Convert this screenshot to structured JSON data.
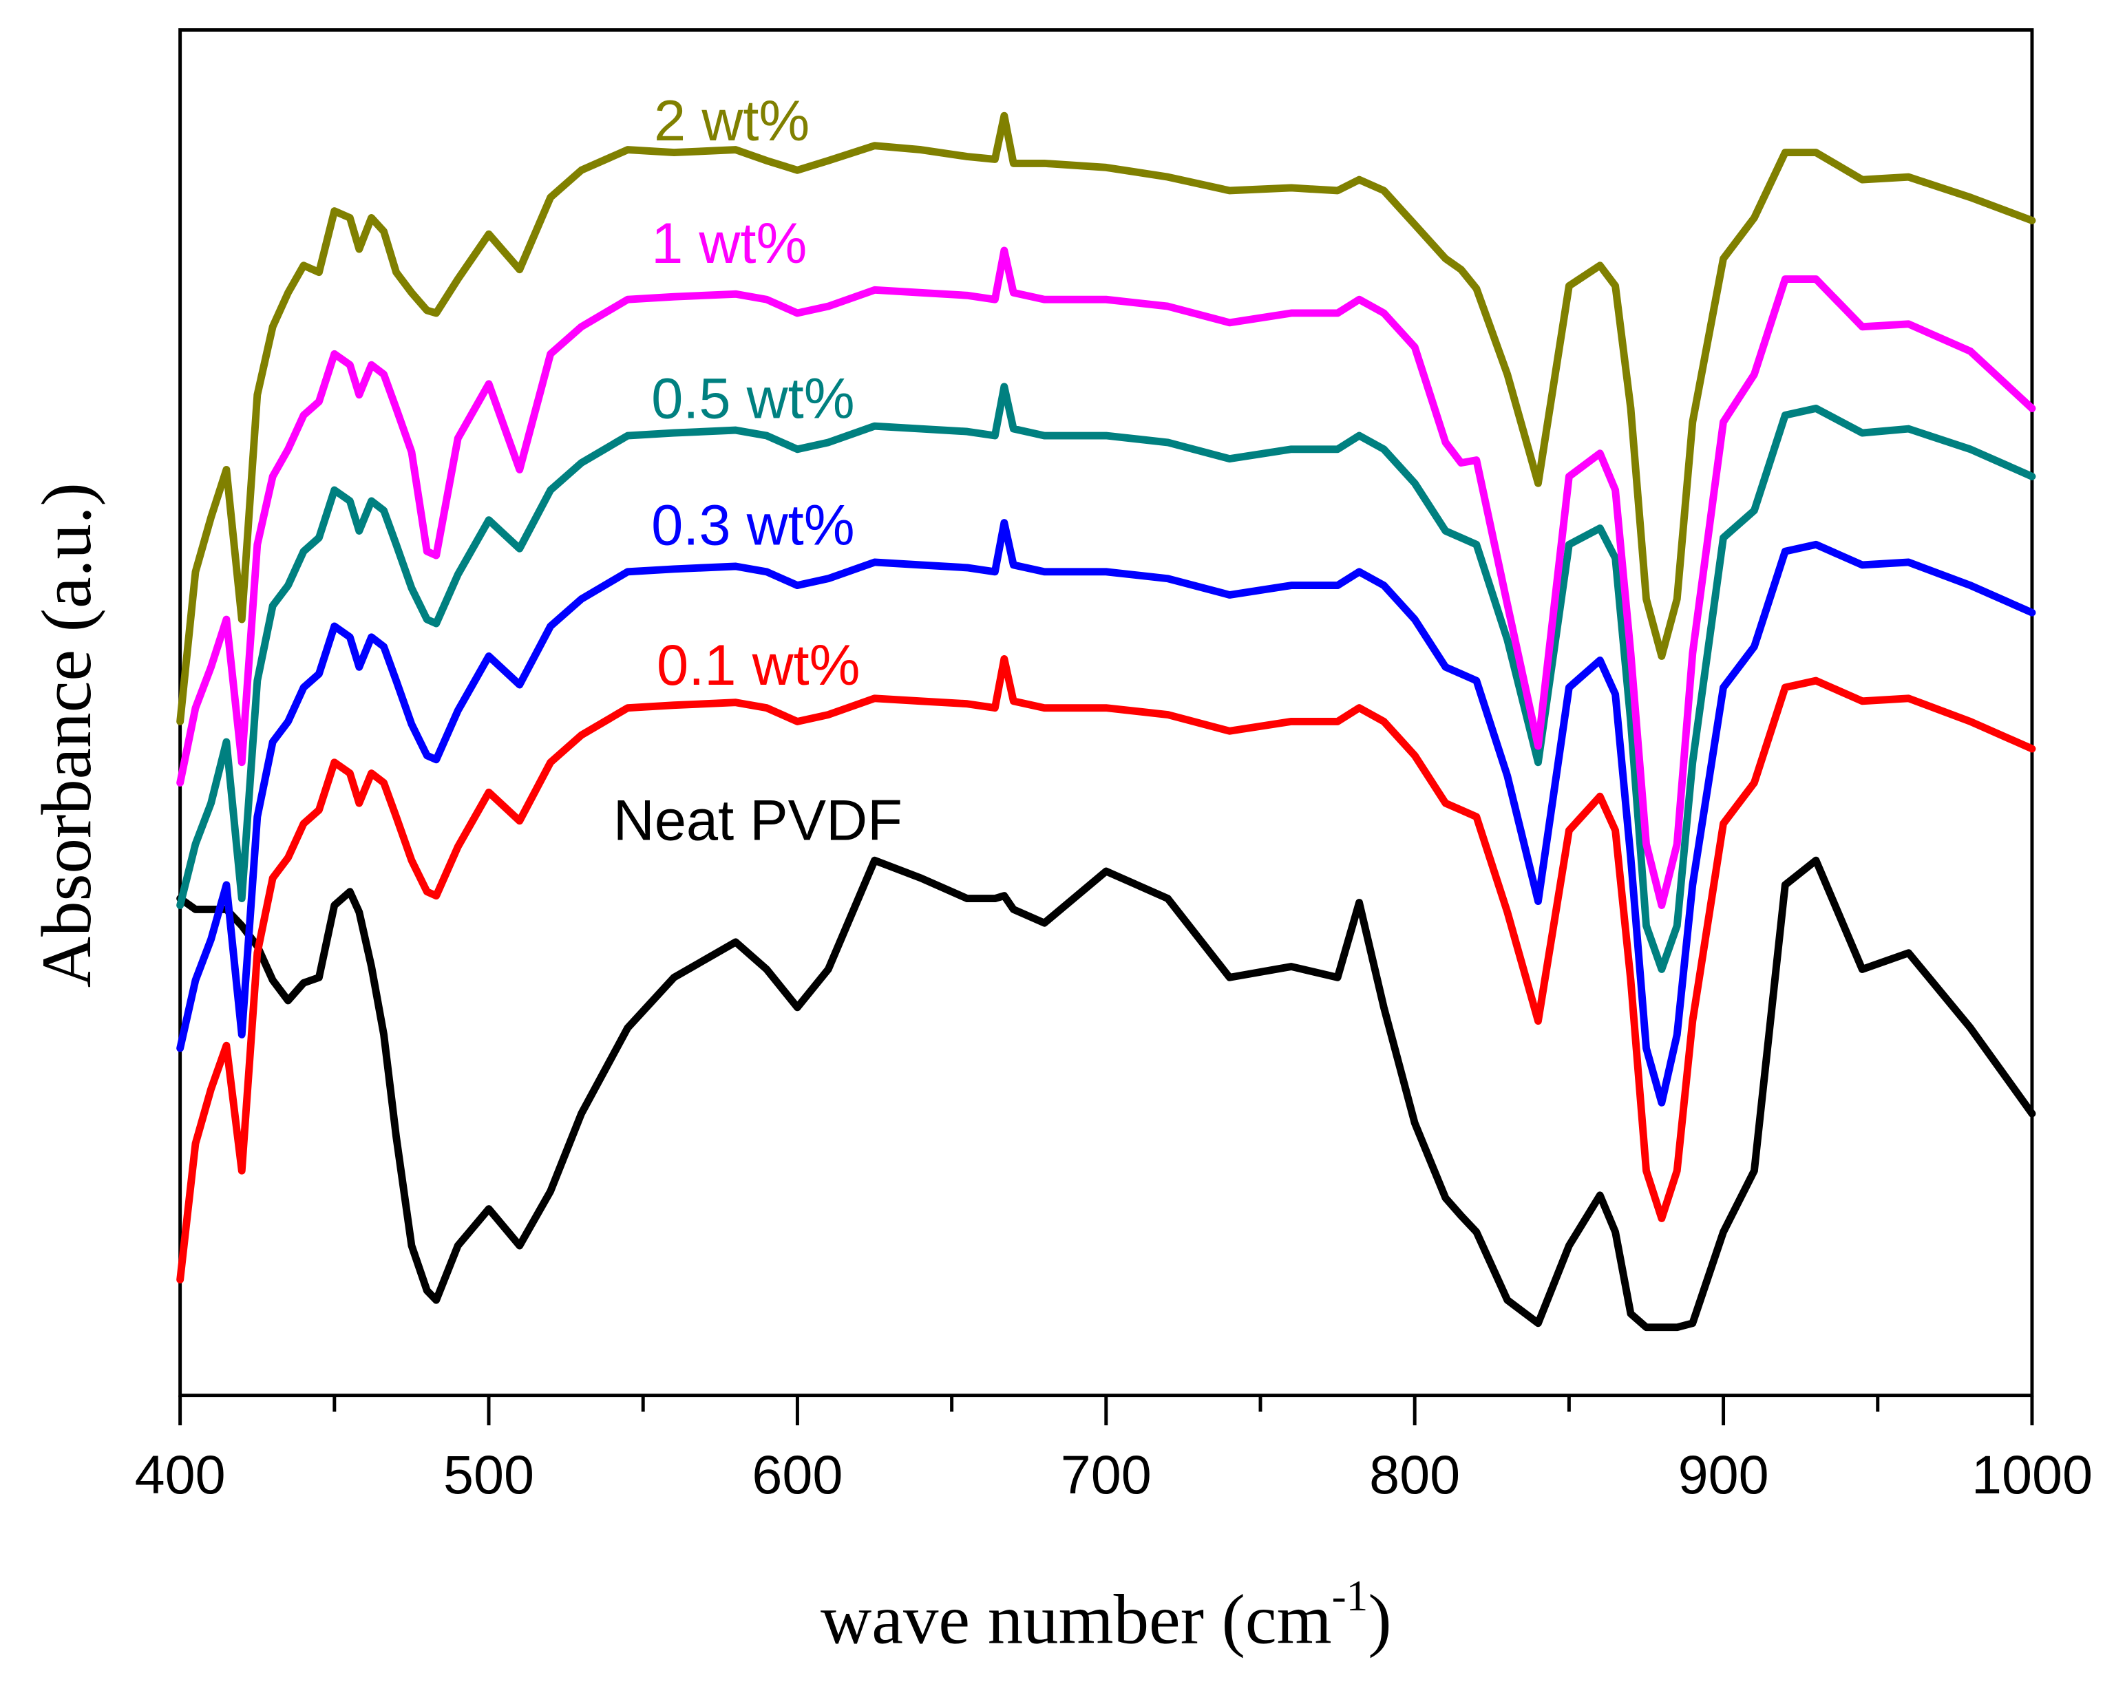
{
  "chart_data": {
    "type": "line",
    "xlabel": "wave number (cm",
    "xlabel_sup": "-1",
    "xlabel_close": ")",
    "ylabel": "Absorbance (a.u.)",
    "xlim": [
      400,
      1000
    ],
    "ylim": [
      0,
      100.3
    ],
    "xticks": [
      400,
      500,
      600,
      700,
      800,
      900,
      1000
    ],
    "xticks_minor": [
      450,
      550,
      650,
      750,
      850,
      950
    ],
    "grid": false,
    "x": [
      400,
      405,
      410,
      415,
      420,
      425,
      430,
      435,
      440,
      445,
      450,
      455,
      458,
      462,
      466,
      470,
      475,
      480,
      483,
      490,
      500,
      510,
      520,
      530,
      545,
      560,
      580,
      590,
      600,
      610,
      625,
      640,
      655,
      664,
      667,
      670,
      680,
      700,
      720,
      740,
      760,
      775,
      782,
      790,
      800,
      810,
      815,
      820,
      830,
      840,
      850,
      860,
      865,
      870,
      875,
      880,
      885,
      890,
      900,
      910,
      920,
      930,
      945,
      960,
      980,
      1000
    ],
    "series": [
      {
        "name": "Neat PVDF",
        "color": "#000000",
        "values": [
          36.5,
          35.7,
          35.7,
          35.7,
          34.5,
          33.0,
          30.5,
          29.0,
          30.3,
          30.7,
          36.0,
          37.0,
          35.5,
          31.5,
          26.5,
          19.0,
          11.0,
          7.7,
          7.0,
          11.0,
          13.7,
          11.0,
          15.0,
          20.7,
          27.0,
          30.7,
          33.3,
          31.3,
          28.5,
          31.3,
          39.3,
          38.0,
          36.5,
          36.5,
          36.7,
          35.7,
          34.7,
          38.5,
          36.5,
          30.7,
          31.5,
          30.7,
          36.2,
          28.5,
          20.0,
          14.5,
          13.2,
          12.0,
          7.0,
          5.3,
          11.0,
          14.7,
          12.0,
          6.0,
          5.0,
          5.0,
          5.0,
          5.3,
          12.0,
          16.5,
          37.5,
          39.3,
          31.3,
          32.5,
          27.0,
          20.7
        ]
      },
      {
        "name": "0.1 wt%",
        "color": "#ff0000",
        "values": [
          8.5,
          18.5,
          22.5,
          25.7,
          16.5,
          32.5,
          38.0,
          39.5,
          42.0,
          43.0,
          46.5,
          45.7,
          43.5,
          45.7,
          45.0,
          42.5,
          39.3,
          37.0,
          36.7,
          40.3,
          44.3,
          42.2,
          46.5,
          48.5,
          50.5,
          50.7,
          50.9,
          50.5,
          49.5,
          50.0,
          51.2,
          51.0,
          50.8,
          50.5,
          54.1,
          51.0,
          50.5,
          50.5,
          50.0,
          48.8,
          49.5,
          49.5,
          50.5,
          49.5,
          47.0,
          43.5,
          43.0,
          42.5,
          35.5,
          27.5,
          41.5,
          44.0,
          41.5,
          30.5,
          16.5,
          13.0,
          16.5,
          27.5,
          42.0,
          45.0,
          52.0,
          52.5,
          51.0,
          51.2,
          49.5,
          47.5
        ]
      },
      {
        "name": "0.3 wt%",
        "color": "#0000ff",
        "values": [
          25.5,
          30.5,
          33.5,
          37.5,
          26.5,
          42.5,
          48.0,
          49.5,
          52.0,
          53.0,
          56.5,
          55.7,
          53.5,
          55.7,
          55.0,
          52.5,
          49.3,
          47.0,
          46.7,
          50.3,
          54.3,
          52.2,
          56.5,
          58.5,
          60.5,
          60.7,
          60.9,
          60.5,
          59.5,
          60.0,
          61.2,
          61.0,
          60.8,
          60.5,
          64.1,
          61.0,
          60.5,
          60.5,
          60.0,
          58.8,
          59.5,
          59.5,
          60.5,
          59.5,
          57.0,
          53.5,
          53.0,
          52.5,
          45.5,
          36.3,
          52.0,
          54.0,
          51.5,
          39.5,
          25.5,
          21.5,
          26.5,
          37.5,
          52.0,
          55.0,
          62.0,
          62.5,
          61.0,
          61.2,
          59.5,
          57.5
        ]
      },
      {
        "name": "0.5 wt%",
        "color": "#008080",
        "values": [
          36.0,
          40.5,
          43.5,
          48.0,
          36.5,
          52.5,
          58.0,
          59.5,
          62.0,
          63.0,
          66.5,
          65.7,
          63.5,
          65.7,
          65.0,
          62.5,
          59.3,
          57.0,
          56.7,
          60.3,
          64.3,
          62.2,
          66.5,
          68.5,
          70.5,
          70.7,
          70.9,
          70.5,
          69.5,
          70.0,
          71.2,
          71.0,
          70.8,
          70.5,
          74.1,
          71.0,
          70.5,
          70.5,
          70.0,
          68.8,
          69.5,
          69.5,
          70.5,
          69.5,
          67.0,
          63.5,
          63.0,
          62.5,
          55.5,
          46.5,
          62.5,
          63.7,
          61.5,
          49.5,
          34.5,
          31.3,
          34.5,
          46.5,
          63.0,
          65.0,
          72.0,
          72.5,
          70.7,
          71.0,
          69.5,
          67.5
        ]
      },
      {
        "name": "1 wt%",
        "color": "#ff00ff",
        "values": [
          45.0,
          50.5,
          53.5,
          57.0,
          46.5,
          62.5,
          67.5,
          69.5,
          72.0,
          73.0,
          76.5,
          75.7,
          73.5,
          75.7,
          75.0,
          72.5,
          69.3,
          62.0,
          61.7,
          70.3,
          74.3,
          68.0,
          76.5,
          78.5,
          80.5,
          80.7,
          80.9,
          80.5,
          79.5,
          80.0,
          81.2,
          81.0,
          80.8,
          80.5,
          84.1,
          81.0,
          80.5,
          80.5,
          80.0,
          78.8,
          79.5,
          79.5,
          80.5,
          79.5,
          77.0,
          70.0,
          68.5,
          68.7,
          58.1,
          47.7,
          67.5,
          69.2,
          66.5,
          54.5,
          40.5,
          36.0,
          40.5,
          54.5,
          71.5,
          75.0,
          82.0,
          82.0,
          78.5,
          78.7,
          76.7,
          72.5
        ]
      },
      {
        "name": "2 wt%",
        "color": "#808000",
        "values": [
          49.5,
          60.5,
          64.5,
          68.0,
          57.0,
          73.5,
          78.5,
          81.0,
          83.0,
          82.5,
          87.0,
          86.5,
          84.2,
          86.5,
          85.5,
          82.5,
          81.0,
          79.7,
          79.5,
          82.0,
          85.3,
          82.7,
          88.0,
          90.0,
          91.5,
          91.3,
          91.5,
          90.7,
          90.0,
          90.7,
          91.8,
          91.5,
          91.0,
          90.8,
          94.0,
          90.5,
          90.5,
          90.2,
          89.5,
          88.5,
          88.7,
          88.5,
          89.3,
          88.5,
          86.0,
          83.5,
          82.7,
          81.3,
          75.0,
          67.0,
          81.5,
          83.0,
          81.5,
          72.5,
          58.5,
          54.3,
          58.5,
          71.5,
          83.5,
          86.5,
          91.3,
          91.3,
          89.3,
          89.5,
          88.0,
          86.3
        ]
      }
    ]
  }
}
